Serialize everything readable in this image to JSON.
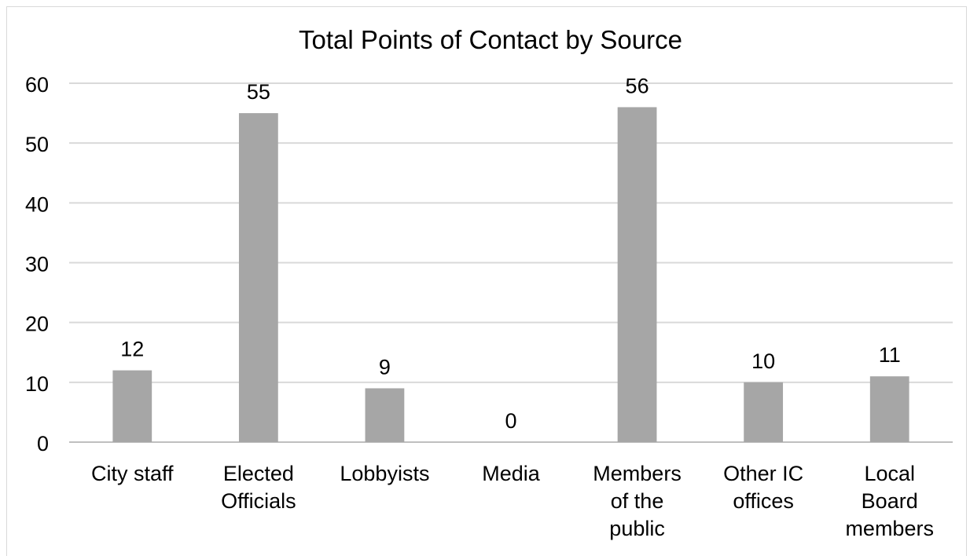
{
  "chart_data": {
    "type": "bar",
    "title": "Total Points of Contact by Source",
    "xlabel": "",
    "ylabel": "",
    "categories": [
      "City staff",
      "Elected Officials",
      "Lobbyists",
      "Media",
      "Members of the public",
      "Other IC offices",
      "Local Board members"
    ],
    "category_lines": [
      [
        "City staff"
      ],
      [
        "Elected",
        "Officials"
      ],
      [
        "Lobbyists"
      ],
      [
        "Media"
      ],
      [
        "Members",
        "of the",
        "public"
      ],
      [
        "Other IC",
        "offices"
      ],
      [
        "Local",
        "Board",
        "members"
      ]
    ],
    "values": [
      12,
      55,
      9,
      0,
      56,
      10,
      11
    ],
    "data_labels": [
      "12",
      "55",
      "9",
      "0",
      "56",
      "10",
      "11"
    ],
    "ylim": [
      0,
      60
    ],
    "yticks": [
      "0",
      "10",
      "20",
      "30",
      "40",
      "50",
      "60"
    ],
    "grid": true,
    "legend": "none",
    "bar_color": "#a6a6a6",
    "grid_color": "#d9d9d9"
  }
}
